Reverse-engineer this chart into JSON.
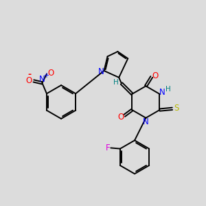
{
  "bg_color": "#dcdcdc",
  "atom_colors": {
    "C": "#000000",
    "N": "#0000ff",
    "O": "#ff0000",
    "S": "#b8b800",
    "F": "#dd00dd",
    "H": "#008080"
  },
  "figsize": [
    3.0,
    3.0
  ],
  "dpi": 100
}
